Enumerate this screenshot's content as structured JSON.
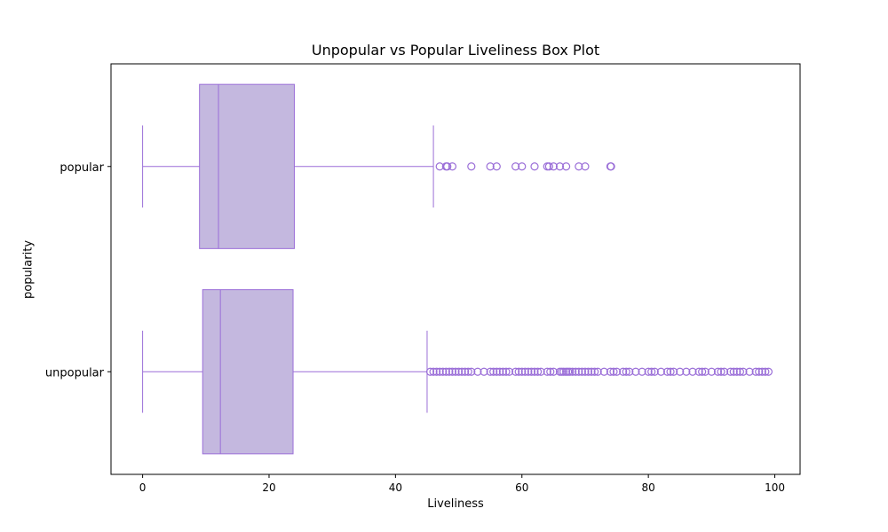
{
  "chart_data": {
    "type": "box",
    "orientation": "horizontal",
    "title": "Unpopular vs Popular Liveliness Box Plot",
    "xlabel": "Liveliness",
    "ylabel": "popularity",
    "xlim": [
      -5,
      104
    ],
    "xticks": [
      0,
      20,
      40,
      60,
      80,
      100
    ],
    "categories": [
      "popular",
      "unpopular"
    ],
    "box_color": "#c4b8df",
    "edge_color": "#9b6fd8",
    "grid": false,
    "series": [
      {
        "name": "popular",
        "whisker_low": 0,
        "q1": 9,
        "median": 12,
        "q3": 24,
        "whisker_high": 46,
        "outliers": [
          47,
          48,
          48.2,
          49,
          52,
          55,
          56,
          59,
          60,
          62,
          64,
          64.3,
          65,
          66,
          67,
          69,
          70,
          74,
          74.1
        ]
      },
      {
        "name": "unpopular",
        "whisker_low": 0,
        "q1": 9.5,
        "median": 12.3,
        "q3": 23.8,
        "whisker_high": 45,
        "outliers": [
          45.5,
          46,
          46.5,
          47,
          47.5,
          48,
          48.5,
          49,
          49.5,
          50,
          50.5,
          51,
          51.5,
          52,
          53,
          54,
          55,
          55.5,
          56,
          56.5,
          57,
          57.5,
          58,
          59,
          59.5,
          60,
          60.5,
          61,
          61.5,
          62,
          62.5,
          63,
          64,
          64.5,
          65,
          66,
          66.3,
          66.6,
          67,
          67.3,
          67.6,
          68,
          68.5,
          69,
          69.5,
          70,
          70.5,
          71,
          71.5,
          72,
          73,
          74,
          74.5,
          75,
          76,
          76.5,
          77,
          78,
          79,
          80,
          80.5,
          81,
          82,
          83,
          83.5,
          84,
          85,
          86,
          87,
          88,
          88.5,
          89,
          90,
          91,
          91.5,
          92,
          93,
          93.5,
          94,
          94.5,
          95,
          96,
          97,
          97.5,
          98,
          98.5,
          99
        ]
      }
    ]
  }
}
